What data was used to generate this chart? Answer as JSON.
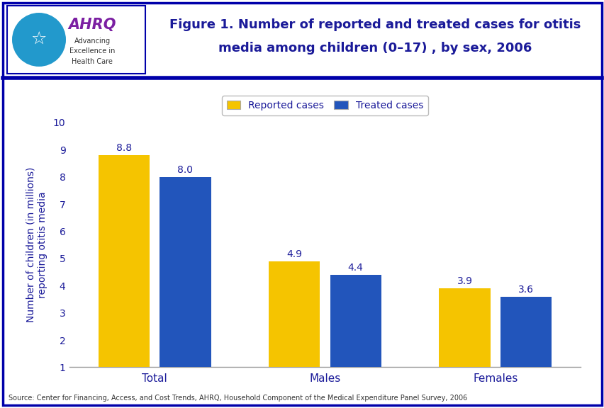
{
  "title_line1": "Figure 1. Number of reported and treated cases for otitis",
  "title_line2": "media among children (0–17) , by sex, 2006",
  "categories": [
    "Total",
    "Males",
    "Females"
  ],
  "reported_values": [
    8.8,
    4.9,
    3.9
  ],
  "treated_values": [
    8.0,
    4.4,
    3.6
  ],
  "reported_color": "#F5C400",
  "treated_color": "#2255BB",
  "ylabel_line1": "Number of children (in millions)",
  "ylabel_line2": "reporting otitis media",
  "ylim_min": 1,
  "ylim_max": 10,
  "yticks": [
    1,
    2,
    3,
    4,
    5,
    6,
    7,
    8,
    9,
    10
  ],
  "legend_labels": [
    "Reported cases",
    "Treated cases"
  ],
  "source_text": "Source: Center for Financing, Access, and Cost Trends, AHRQ, Household Component of the Medical Expenditure Panel Survey, 2006",
  "title_color": "#1A1A99",
  "axis_label_color": "#1A1A99",
  "tick_label_color": "#1A1A99",
  "category_label_color": "#1A1A99",
  "bar_width": 0.3,
  "bar_gap": 0.06,
  "background_color": "#FFFFFF",
  "border_color": "#0000AA",
  "source_color": "#333333",
  "divider_color": "#0000AA",
  "logo_bg_color": "#3399CC",
  "logo_border_color": "#0000AA"
}
